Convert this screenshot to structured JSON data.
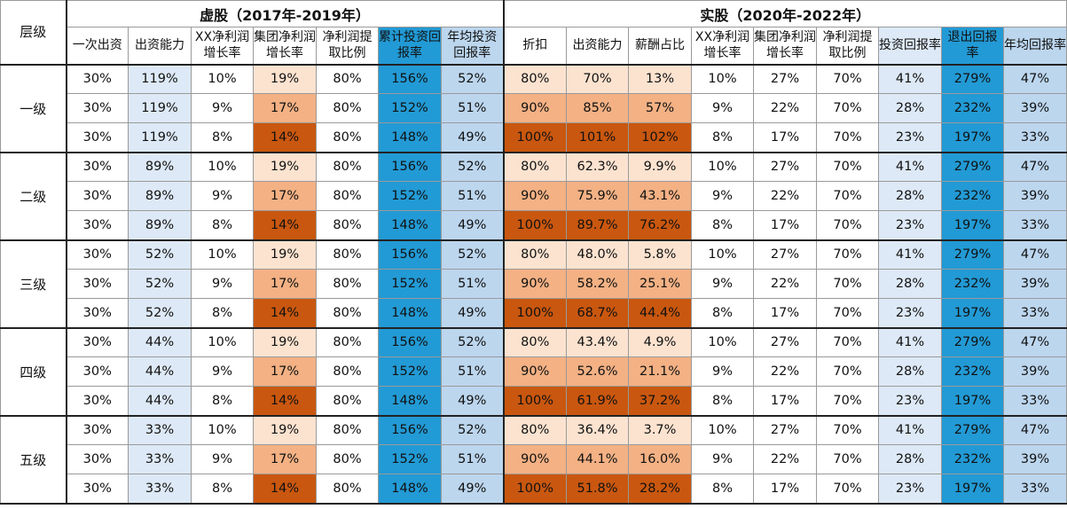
{
  "header": {
    "tier_label": "层级",
    "virtual_title": "虚股（2017年-2019年）",
    "real_title": "实股（2020年-2022年）",
    "virtual_cols": [
      "一次出资",
      "出资能力",
      "XX净利润增长率",
      "集团净利润增长率",
      "净利润提取比例",
      "累计投资回报率",
      "年均投资回报率"
    ],
    "real_cols": [
      "折扣",
      "出资能力",
      "薪酬占比",
      "XX净利润增长率",
      "集团净利润增长率",
      "净利润提取比例",
      "投资回报率",
      "退出回报率",
      "年均回报率"
    ]
  },
  "tiers": [
    {
      "label": "一级",
      "rows": [
        {
          "v": [
            "30%",
            "119%",
            "10%",
            "19%",
            "80%",
            "156%",
            "52%"
          ],
          "r": [
            "80%",
            "70%",
            "13%",
            "10%",
            "27%",
            "70%",
            "41%",
            "279%",
            "47%"
          ]
        },
        {
          "v": [
            "30%",
            "119%",
            "9%",
            "17%",
            "80%",
            "152%",
            "51%"
          ],
          "r": [
            "90%",
            "85%",
            "57%",
            "9%",
            "22%",
            "70%",
            "28%",
            "232%",
            "39%"
          ]
        },
        {
          "v": [
            "30%",
            "119%",
            "8%",
            "14%",
            "80%",
            "148%",
            "49%"
          ],
          "r": [
            "100%",
            "101%",
            "102%",
            "8%",
            "17%",
            "70%",
            "23%",
            "197%",
            "33%"
          ]
        }
      ]
    },
    {
      "label": "二级",
      "rows": [
        {
          "v": [
            "30%",
            "89%",
            "10%",
            "19%",
            "80%",
            "156%",
            "52%"
          ],
          "r": [
            "80%",
            "62.3%",
            "9.9%",
            "10%",
            "27%",
            "70%",
            "41%",
            "279%",
            "47%"
          ]
        },
        {
          "v": [
            "30%",
            "89%",
            "9%",
            "17%",
            "80%",
            "152%",
            "51%"
          ],
          "r": [
            "90%",
            "75.9%",
            "43.1%",
            "9%",
            "22%",
            "70%",
            "28%",
            "232%",
            "39%"
          ]
        },
        {
          "v": [
            "30%",
            "89%",
            "8%",
            "14%",
            "80%",
            "148%",
            "49%"
          ],
          "r": [
            "100%",
            "89.7%",
            "76.2%",
            "8%",
            "17%",
            "70%",
            "23%",
            "197%",
            "33%"
          ]
        }
      ]
    },
    {
      "label": "三级",
      "rows": [
        {
          "v": [
            "30%",
            "52%",
            "10%",
            "19%",
            "80%",
            "156%",
            "52%"
          ],
          "r": [
            "80%",
            "48.0%",
            "5.8%",
            "10%",
            "27%",
            "70%",
            "41%",
            "279%",
            "47%"
          ]
        },
        {
          "v": [
            "30%",
            "52%",
            "9%",
            "17%",
            "80%",
            "152%",
            "51%"
          ],
          "r": [
            "90%",
            "58.2%",
            "25.1%",
            "9%",
            "22%",
            "70%",
            "28%",
            "232%",
            "39%"
          ]
        },
        {
          "v": [
            "30%",
            "52%",
            "8%",
            "14%",
            "80%",
            "148%",
            "49%"
          ],
          "r": [
            "100%",
            "68.7%",
            "44.4%",
            "8%",
            "17%",
            "70%",
            "23%",
            "197%",
            "33%"
          ]
        }
      ]
    },
    {
      "label": "四级",
      "rows": [
        {
          "v": [
            "30%",
            "44%",
            "10%",
            "19%",
            "80%",
            "156%",
            "52%"
          ],
          "r": [
            "80%",
            "43.4%",
            "4.9%",
            "10%",
            "27%",
            "70%",
            "41%",
            "279%",
            "47%"
          ]
        },
        {
          "v": [
            "30%",
            "44%",
            "9%",
            "17%",
            "80%",
            "152%",
            "51%"
          ],
          "r": [
            "90%",
            "52.6%",
            "21.1%",
            "9%",
            "22%",
            "70%",
            "28%",
            "232%",
            "39%"
          ]
        },
        {
          "v": [
            "30%",
            "44%",
            "8%",
            "14%",
            "80%",
            "148%",
            "49%"
          ],
          "r": [
            "100%",
            "61.9%",
            "37.2%",
            "8%",
            "17%",
            "70%",
            "23%",
            "197%",
            "33%"
          ]
        }
      ]
    },
    {
      "label": "五级",
      "rows": [
        {
          "v": [
            "30%",
            "33%",
            "10%",
            "19%",
            "80%",
            "156%",
            "52%"
          ],
          "r": [
            "80%",
            "36.4%",
            "3.7%",
            "10%",
            "27%",
            "70%",
            "41%",
            "279%",
            "47%"
          ]
        },
        {
          "v": [
            "30%",
            "33%",
            "9%",
            "17%",
            "80%",
            "152%",
            "51%"
          ],
          "r": [
            "90%",
            "44.1%",
            "16.0%",
            "9%",
            "22%",
            "70%",
            "28%",
            "232%",
            "39%"
          ]
        },
        {
          "v": [
            "30%",
            "33%",
            "8%",
            "14%",
            "80%",
            "148%",
            "49%"
          ],
          "r": [
            "100%",
            "51.8%",
            "28.2%",
            "8%",
            "17%",
            "70%",
            "23%",
            "197%",
            "33%"
          ]
        }
      ]
    }
  ],
  "colors": {
    "white": "#ffffff",
    "light_blue": "#dde9f6",
    "medium_blue": "#bcd6ee",
    "dark_blue": "#229ad5",
    "peach_light": "#fce3d0",
    "peach_medium": "#f3b184",
    "orange_dark": "#c9570f"
  }
}
